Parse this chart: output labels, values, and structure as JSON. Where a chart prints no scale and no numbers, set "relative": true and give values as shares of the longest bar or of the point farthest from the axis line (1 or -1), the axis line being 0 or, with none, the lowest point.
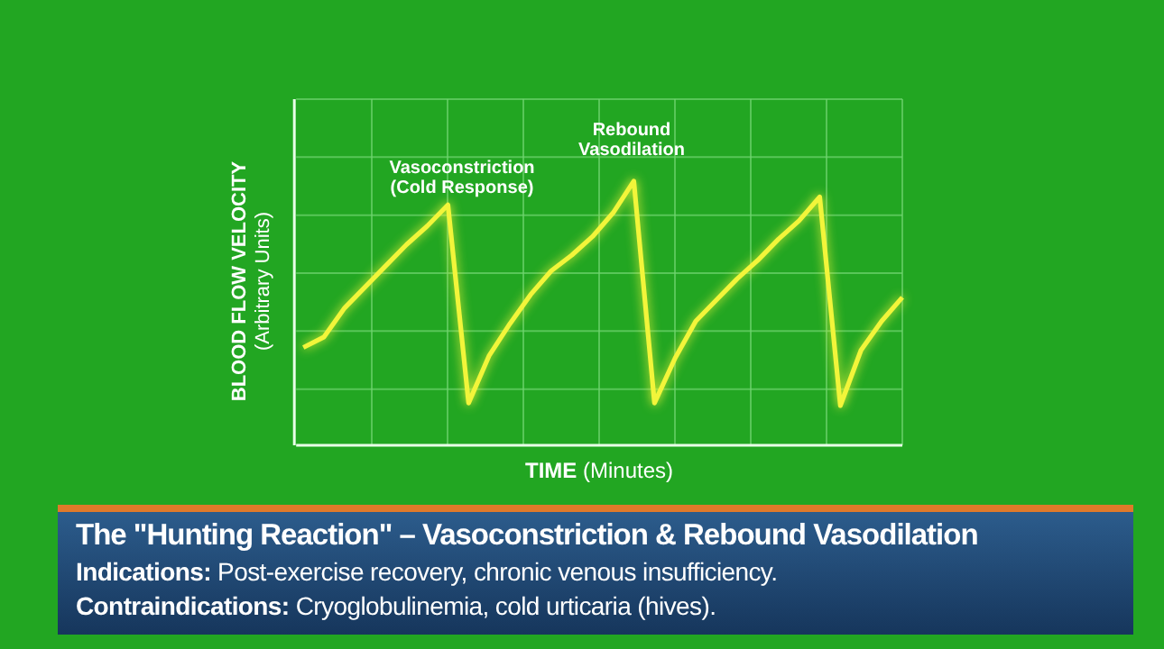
{
  "chart_data": {
    "type": "line",
    "relative": true,
    "title": "The \"Hunting Reaction\" – Vasoconstriction & Rebound Vasodilation",
    "xlabel": "TIME (Minutes)",
    "ylabel": "BLOOD FLOW VELOCITY (Arbitrary Units)",
    "categories": [
      null,
      null,
      null,
      null,
      null,
      null,
      null,
      null,
      null,
      null,
      null,
      null,
      null,
      null,
      null,
      null,
      null,
      null,
      null,
      null,
      null,
      null,
      null,
      null,
      null,
      null,
      null,
      null,
      null,
      null
    ],
    "series": [
      {
        "color": "#f2f53a",
        "values": [
          0.37,
          0.41,
          0.52,
          0.6,
          0.68,
          0.76,
          0.83,
          0.91,
          0.16,
          0.34,
          0.46,
          0.57,
          0.66,
          0.72,
          0.79,
          0.88,
          1,
          0.16,
          0.33,
          0.47,
          0.55,
          0.63,
          0.7,
          0.78,
          0.85,
          0.94,
          0.15,
          0.36,
          0.47,
          0.56
        ]
      }
    ],
    "annotations": [
      "Vasoconstriction\n(Cold Response)",
      "Rebound\nVasodilation",
      "Indications: Post-exercise recovery, chronic venous insufficiency.",
      "Contraindications: Cryoglobulinemia, cold urticaria (hives)."
    ],
    "grid": true,
    "marker": "none",
    "line_style": "solid"
  }
}
